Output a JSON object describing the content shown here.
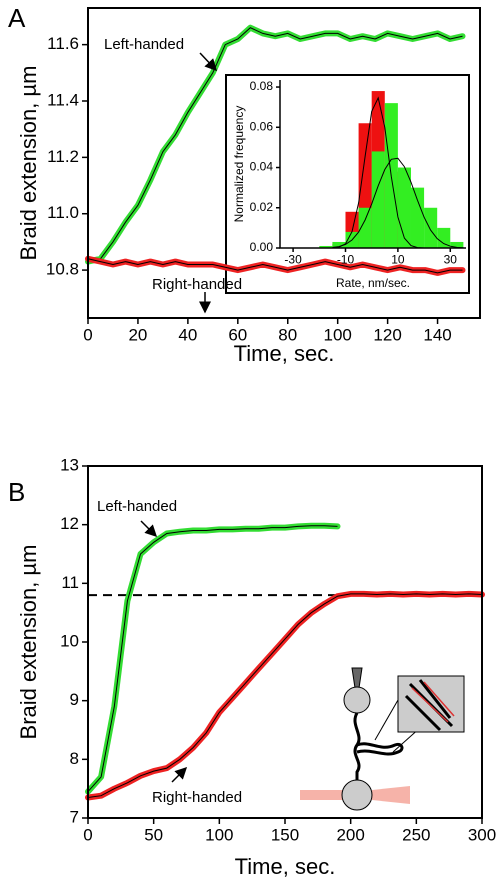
{
  "chart_data": [
    {
      "type": "line",
      "panel_label": "A",
      "x_label": "Time, sec.",
      "y_label": "Braid extension, µm",
      "xlim": [
        0,
        157
      ],
      "xticks": [
        0,
        20,
        40,
        60,
        80,
        100,
        120,
        140
      ],
      "ylim": [
        10.63,
        11.73
      ],
      "yticks": [
        10.8,
        {
          "value": 11.0,
          "label": "11.0"
        },
        11.2,
        11.4,
        11.6
      ],
      "x": [
        0,
        5,
        10,
        15,
        20,
        25,
        30,
        35,
        40,
        45,
        50,
        55,
        60,
        65,
        70,
        75,
        80,
        85,
        90,
        95,
        100,
        105,
        110,
        115,
        120,
        125,
        130,
        135,
        140,
        145,
        150
      ],
      "series": [
        {
          "name": "Left-handed",
          "color": "#33dd33",
          "values": [
            10.83,
            10.84,
            10.9,
            10.97,
            11.03,
            11.12,
            11.22,
            11.28,
            11.36,
            11.43,
            11.5,
            11.6,
            11.62,
            11.66,
            11.64,
            11.63,
            11.64,
            11.62,
            11.63,
            11.64,
            11.64,
            11.62,
            11.63,
            11.62,
            11.64,
            11.63,
            11.62,
            11.63,
            11.64,
            11.62,
            11.63
          ]
        },
        {
          "name": "Right-handed",
          "color": "#ee2222",
          "values": [
            10.84,
            10.83,
            10.82,
            10.83,
            10.82,
            10.83,
            10.82,
            10.83,
            10.82,
            10.82,
            10.82,
            10.81,
            10.8,
            10.81,
            10.82,
            10.81,
            10.8,
            10.81,
            10.82,
            10.83,
            10.82,
            10.81,
            10.82,
            10.81,
            10.8,
            10.81,
            10.8,
            10.8,
            10.79,
            10.8,
            10.8
          ]
        }
      ]
    },
    {
      "type": "histogram",
      "x_label": "Rate, nm/sec.",
      "y_label": "Normalized frequency",
      "xlim": [
        -35,
        36
      ],
      "xticks": [
        -30,
        -10,
        10,
        30
      ],
      "ylim": [
        0,
        0.0835
      ],
      "yticks": [
        {
          "value": 0,
          "label": "0.00"
        },
        {
          "value": 0.02,
          "label": "0.02"
        },
        {
          "value": 0.04,
          "label": "0.04"
        },
        {
          "value": 0.06,
          "label": "0.06"
        },
        {
          "value": 0.08,
          "label": "0.08"
        }
      ],
      "bins": [
        -20,
        -15,
        -10,
        -5,
        0,
        5,
        10,
        15,
        20,
        25,
        30,
        35
      ],
      "series": [
        {
          "color": "#ee1111",
          "values": [
            0,
            0.002,
            0.018,
            0.062,
            0.078,
            0.038,
            0.003,
            0,
            0,
            0,
            0
          ]
        },
        {
          "color": "#33ee22",
          "values": [
            0.001,
            0.003,
            0.008,
            0.02,
            0.048,
            0.072,
            0.04,
            0.03,
            0.02,
            0.01,
            0.003
          ]
        }
      ],
      "fits": [
        {
          "x": [
            -15,
            -12.5,
            -10,
            -7.5,
            -5,
            -2.5,
            0,
            2.5,
            5,
            7.5,
            10,
            12.5,
            15,
            17.5,
            20
          ],
          "values": [
            0,
            0.0004,
            0.0021,
            0.0081,
            0.0224,
            0.0455,
            0.0679,
            0.0746,
            0.06,
            0.0355,
            0.0154,
            0.0049,
            0.0012,
            0.0002,
            0
          ]
        },
        {
          "x": [
            -15,
            -12.5,
            -10,
            -7.5,
            -5,
            -2.5,
            0,
            2.5,
            5,
            7.5,
            10,
            12.5,
            15,
            17.5,
            20,
            22.5,
            25,
            27.5,
            30,
            32.5,
            35
          ],
          "values": [
            0.0003,
            0.0007,
            0.0018,
            0.004,
            0.0079,
            0.0139,
            0.0219,
            0.0309,
            0.039,
            0.0441,
            0.0446,
            0.0404,
            0.0327,
            0.0237,
            0.0153,
            0.0089,
            0.0046,
            0.0022,
            0.0009,
            0.0003,
            0.0001
          ]
        }
      ]
    },
    {
      "type": "line",
      "panel_label": "B",
      "x_label": "Time, sec.",
      "y_label": "Braid extension, µm",
      "xlim": [
        0,
        300
      ],
      "xticks": [
        0,
        50,
        100,
        150,
        200,
        250,
        300
      ],
      "ylim": [
        7,
        13
      ],
      "yticks": [
        7,
        8,
        9,
        10,
        11,
        12,
        13
      ],
      "reference_line": 10.8,
      "x": [
        0,
        10,
        20,
        30,
        40,
        50,
        60,
        70,
        80,
        90,
        100,
        110,
        120,
        130,
        140,
        150,
        160,
        170,
        180,
        190,
        200,
        210,
        220,
        230,
        240,
        250,
        260,
        270,
        280,
        290,
        300
      ],
      "series": [
        {
          "name": "Left-handed",
          "color": "#33dd33",
          "values": [
            7.45,
            7.7,
            8.9,
            10.7,
            11.5,
            11.7,
            11.85,
            11.88,
            11.9,
            11.9,
            11.92,
            11.92,
            11.93,
            11.93,
            11.95,
            11.95,
            11.97,
            11.98,
            11.98,
            11.97,
            null,
            null,
            null,
            null,
            null,
            null,
            null,
            null,
            null,
            null,
            null
          ]
        },
        {
          "name": "Right-handed",
          "color": "#ee2222",
          "values": [
            7.35,
            7.38,
            7.5,
            7.6,
            7.72,
            7.8,
            7.85,
            8.0,
            8.2,
            8.45,
            8.8,
            9.05,
            9.3,
            9.55,
            9.8,
            10.05,
            10.3,
            10.5,
            10.65,
            10.78,
            10.82,
            10.82,
            10.81,
            10.82,
            10.81,
            10.82,
            10.81,
            10.82,
            10.81,
            10.82,
            10.81
          ]
        }
      ]
    }
  ]
}
